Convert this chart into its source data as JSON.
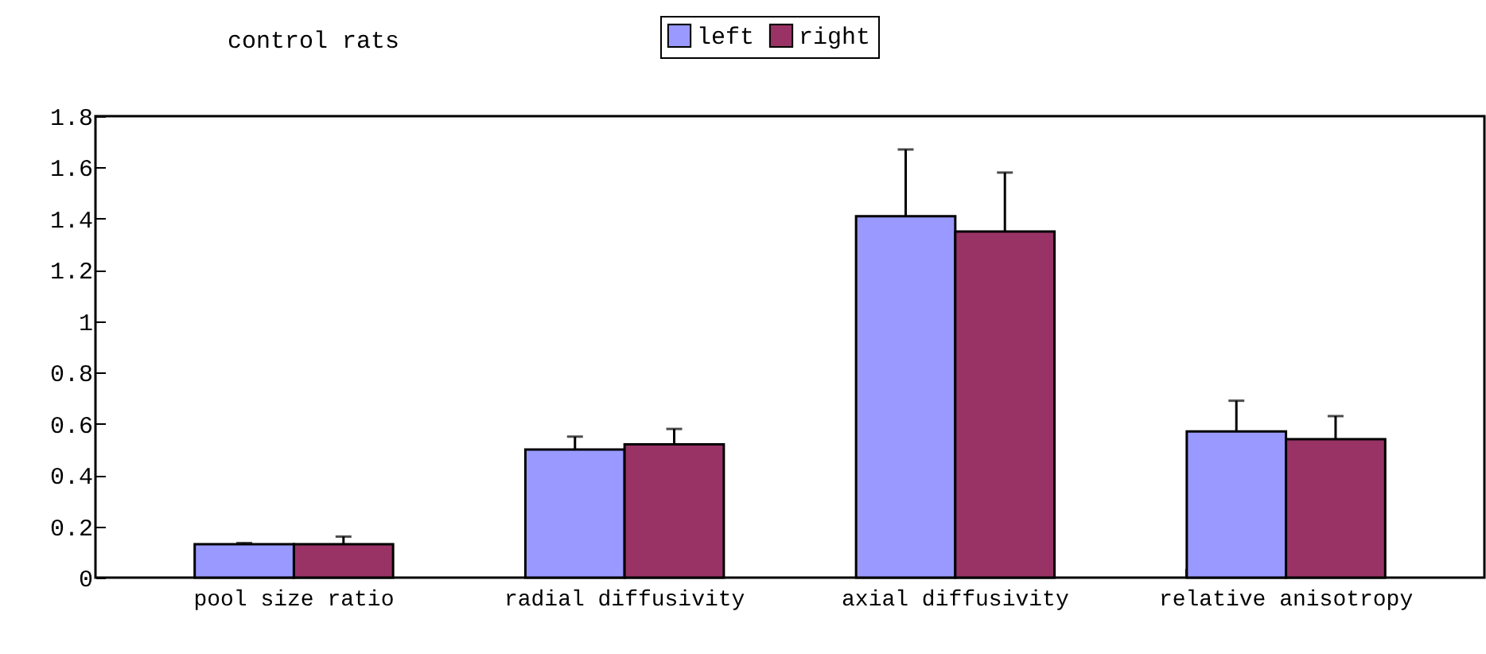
{
  "chart_data": {
    "type": "bar",
    "title": "control rats",
    "categories": [
      "pool size ratio",
      "radial diffusivity",
      "axial diffusivity",
      "relative anisotropy"
    ],
    "series": [
      {
        "name": "left",
        "color": "#9999ff",
        "values": [
          0.13,
          0.5,
          1.41,
          0.57
        ],
        "errors": [
          [
            0.13,
            0.135
          ],
          [
            0.5,
            0.55
          ],
          [
            1.41,
            1.67
          ],
          [
            0.57,
            0.69
          ]
        ]
      },
      {
        "name": "right",
        "color": "#993366",
        "values": [
          0.13,
          0.52,
          1.35,
          0.54
        ],
        "errors": [
          [
            0.13,
            0.16
          ],
          [
            0.52,
            0.58
          ],
          [
            1.35,
            1.58
          ],
          [
            0.54,
            0.63
          ]
        ]
      }
    ],
    "ylim": [
      0,
      1.8
    ],
    "yticks": [
      0,
      0.2,
      0.4,
      0.6,
      0.8,
      1,
      1.2,
      1.4,
      1.6,
      1.8
    ],
    "legend": "top"
  }
}
